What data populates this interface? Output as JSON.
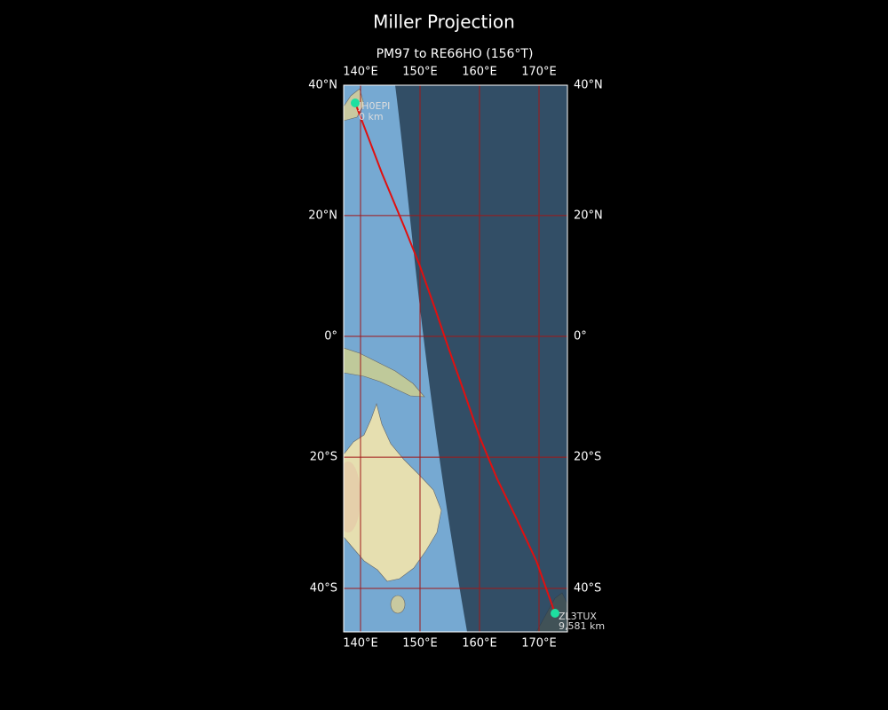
{
  "title": "Miller Projection",
  "subtitle": "PM97 to RE66HO (156°T)",
  "map": {
    "lon_ticks": [
      {
        "value": 140,
        "label": "140°E"
      },
      {
        "value": 150,
        "label": "150°E"
      },
      {
        "value": 160,
        "label": "160°E"
      },
      {
        "value": 170,
        "label": "170°E"
      }
    ],
    "lat_ticks": [
      {
        "value": 40,
        "label": "40°N"
      },
      {
        "value": 20,
        "label": "20°N"
      },
      {
        "value": 0,
        "label": "0°"
      },
      {
        "value": -20,
        "label": "20°S"
      },
      {
        "value": -40,
        "label": "40°S"
      }
    ],
    "start": {
      "label": "JH0EPI",
      "distance": "0 km"
    },
    "end": {
      "label": "ZL3TUX",
      "distance": "9,581 km"
    }
  }
}
